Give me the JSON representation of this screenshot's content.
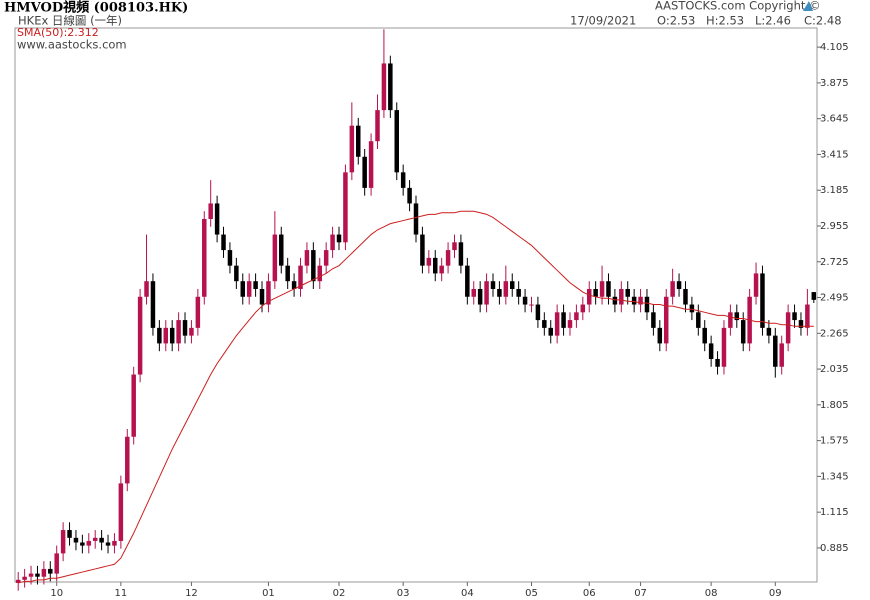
{
  "header": {
    "title": "HMVOD視頻 (008103.HK)",
    "subtitle": "HKEx 日線圖 (一年)",
    "website": "www.aastocks.com",
    "copyright": "AASTOCKS.com Copyright ©",
    "date": "17/09/2021",
    "open": "O:2.53",
    "high": "H:2.53",
    "low": "L:2.46",
    "close": "C:2.48"
  },
  "chart_data": {
    "type": "candlestick",
    "categories": [
      null,
      null,
      null,
      null,
      null,
      null,
      "10",
      null,
      null,
      null,
      null,
      null,
      null,
      null,
      null,
      null,
      "11",
      null,
      null,
      null,
      null,
      null,
      null,
      null,
      null,
      null,
      null,
      "12",
      null,
      null,
      null,
      null,
      null,
      null,
      null,
      null,
      null,
      null,
      null,
      "01",
      null,
      null,
      null,
      null,
      null,
      null,
      null,
      null,
      null,
      null,
      "02",
      null,
      null,
      null,
      null,
      null,
      null,
      null,
      null,
      null,
      "03",
      null,
      null,
      null,
      null,
      null,
      null,
      null,
      null,
      null,
      "04",
      null,
      null,
      null,
      null,
      null,
      null,
      null,
      null,
      null,
      "05",
      null,
      null,
      null,
      null,
      null,
      null,
      null,
      null,
      "06",
      null,
      null,
      null,
      null,
      null,
      null,
      null,
      "07",
      null,
      null,
      null,
      null,
      null,
      null,
      null,
      null,
      null,
      null,
      "08",
      null,
      null,
      null,
      null,
      null,
      null,
      null,
      null,
      null,
      "09",
      null,
      null,
      null,
      null,
      null,
      null
    ],
    "open": [
      0.66,
      0.68,
      0.7,
      0.72,
      0.7,
      0.75,
      0.72,
      0.85,
      1.0,
      0.95,
      0.92,
      0.9,
      0.93,
      0.95,
      0.92,
      0.9,
      0.93,
      1.3,
      1.6,
      2.0,
      2.5,
      2.6,
      2.3,
      2.2,
      2.3,
      2.2,
      2.35,
      2.25,
      2.3,
      2.5,
      3.0,
      3.1,
      2.9,
      2.8,
      2.7,
      2.6,
      2.5,
      2.6,
      2.55,
      2.45,
      2.6,
      2.9,
      2.7,
      2.6,
      2.55,
      2.7,
      2.8,
      2.6,
      2.7,
      2.8,
      2.9,
      2.85,
      3.3,
      3.6,
      3.4,
      3.2,
      3.5,
      3.7,
      4.0,
      3.7,
      3.3,
      3.2,
      3.1,
      2.9,
      2.7,
      2.75,
      2.65,
      2.7,
      2.8,
      2.85,
      2.7,
      2.5,
      2.55,
      2.45,
      2.6,
      2.55,
      2.5,
      2.6,
      2.55,
      2.5,
      2.45,
      2.45,
      2.35,
      2.3,
      2.25,
      2.4,
      2.3,
      2.35,
      2.4,
      2.45,
      2.55,
      2.5,
      2.6,
      2.5,
      2.45,
      2.55,
      2.5,
      2.45,
      2.5,
      2.4,
      2.3,
      2.2,
      2.5,
      2.6,
      2.55,
      2.45,
      2.4,
      2.3,
      2.2,
      2.1,
      2.05,
      2.3,
      2.4,
      2.35,
      2.2,
      2.5,
      2.65,
      2.3,
      2.25,
      2.05,
      2.2,
      2.4,
      2.35,
      2.3,
      2.53
    ],
    "high": [
      0.73,
      0.75,
      0.77,
      0.77,
      0.8,
      0.8,
      0.9,
      1.05,
      1.05,
      1.0,
      0.97,
      0.98,
      1.0,
      1.0,
      0.97,
      0.98,
      1.35,
      1.65,
      2.05,
      2.55,
      2.9,
      2.65,
      2.35,
      2.35,
      2.35,
      2.4,
      2.4,
      2.35,
      2.55,
      3.05,
      3.25,
      3.15,
      2.95,
      2.85,
      2.75,
      2.65,
      2.65,
      2.65,
      2.6,
      2.65,
      3.05,
      2.95,
      2.75,
      2.65,
      2.75,
      2.85,
      2.85,
      2.75,
      2.85,
      2.95,
      2.95,
      3.35,
      3.75,
      3.65,
      3.45,
      3.55,
      3.8,
      4.22,
      4.05,
      3.75,
      3.35,
      3.25,
      3.15,
      2.95,
      2.8,
      2.8,
      2.75,
      2.85,
      2.9,
      2.9,
      2.75,
      2.6,
      2.6,
      2.65,
      2.65,
      2.6,
      2.7,
      2.65,
      2.6,
      2.55,
      2.5,
      2.5,
      2.4,
      2.35,
      2.45,
      2.45,
      2.4,
      2.45,
      2.5,
      2.6,
      2.6,
      2.7,
      2.65,
      2.55,
      2.6,
      2.6,
      2.55,
      2.55,
      2.55,
      2.45,
      2.35,
      2.55,
      2.68,
      2.65,
      2.6,
      2.5,
      2.45,
      2.35,
      2.25,
      2.15,
      2.35,
      2.45,
      2.45,
      2.4,
      2.55,
      2.72,
      2.7,
      2.35,
      2.3,
      2.25,
      2.45,
      2.45,
      2.4,
      2.55,
      2.53
    ],
    "low": [
      0.61,
      0.63,
      0.65,
      0.65,
      0.65,
      0.67,
      0.67,
      0.8,
      0.9,
      0.87,
      0.85,
      0.85,
      0.88,
      0.87,
      0.85,
      0.85,
      0.88,
      1.25,
      1.55,
      1.95,
      2.45,
      2.25,
      2.15,
      2.15,
      2.15,
      2.15,
      2.2,
      2.2,
      2.25,
      2.45,
      2.95,
      2.85,
      2.75,
      2.65,
      2.55,
      2.45,
      2.45,
      2.5,
      2.4,
      2.4,
      2.55,
      2.65,
      2.55,
      2.5,
      2.5,
      2.65,
      2.55,
      2.55,
      2.65,
      2.75,
      2.8,
      2.8,
      3.25,
      3.35,
      3.15,
      3.15,
      3.45,
      3.65,
      3.65,
      3.25,
      3.15,
      3.05,
      2.85,
      2.65,
      2.65,
      2.6,
      2.6,
      2.65,
      2.75,
      2.65,
      2.45,
      2.45,
      2.4,
      2.4,
      2.5,
      2.45,
      2.45,
      2.5,
      2.45,
      2.4,
      2.4,
      2.3,
      2.25,
      2.2,
      2.2,
      2.25,
      2.25,
      2.3,
      2.35,
      2.4,
      2.45,
      2.45,
      2.45,
      2.4,
      2.4,
      2.45,
      2.4,
      2.4,
      2.35,
      2.25,
      2.15,
      2.15,
      2.45,
      2.5,
      2.4,
      2.35,
      2.25,
      2.15,
      2.05,
      2.0,
      2.0,
      2.25,
      2.3,
      2.15,
      2.15,
      2.45,
      2.25,
      2.2,
      1.98,
      2.0,
      2.15,
      2.3,
      2.25,
      2.25,
      2.46
    ],
    "close": [
      0.68,
      0.7,
      0.72,
      0.7,
      0.75,
      0.72,
      0.85,
      1.0,
      0.95,
      0.92,
      0.9,
      0.93,
      0.95,
      0.92,
      0.9,
      0.93,
      1.3,
      1.6,
      2.0,
      2.5,
      2.6,
      2.3,
      2.2,
      2.3,
      2.2,
      2.35,
      2.25,
      2.3,
      2.5,
      3.0,
      3.1,
      2.9,
      2.8,
      2.7,
      2.6,
      2.5,
      2.6,
      2.55,
      2.45,
      2.6,
      2.9,
      2.7,
      2.6,
      2.55,
      2.7,
      2.8,
      2.6,
      2.7,
      2.8,
      2.9,
      2.85,
      3.3,
      3.6,
      3.4,
      3.2,
      3.5,
      3.7,
      4.0,
      3.7,
      3.3,
      3.2,
      3.1,
      2.9,
      2.7,
      2.75,
      2.65,
      2.7,
      2.8,
      2.85,
      2.7,
      2.5,
      2.55,
      2.45,
      2.6,
      2.55,
      2.5,
      2.6,
      2.55,
      2.5,
      2.45,
      2.45,
      2.35,
      2.3,
      2.25,
      2.4,
      2.3,
      2.35,
      2.4,
      2.45,
      2.55,
      2.5,
      2.6,
      2.5,
      2.45,
      2.55,
      2.5,
      2.45,
      2.5,
      2.4,
      2.3,
      2.2,
      2.5,
      2.6,
      2.55,
      2.45,
      2.4,
      2.3,
      2.2,
      2.1,
      2.05,
      2.3,
      2.4,
      2.35,
      2.2,
      2.5,
      2.65,
      2.3,
      2.25,
      2.05,
      2.2,
      2.4,
      2.35,
      2.3,
      2.45,
      2.48
    ],
    "up_color": "#b5124e",
    "down_color": "#000000",
    "series": [
      {
        "name": "SMA(50):2.312",
        "color": "#cc1f1f",
        "values": [
          0.66,
          0.67,
          0.67,
          0.68,
          0.68,
          0.69,
          0.69,
          0.7,
          0.71,
          0.72,
          0.73,
          0.74,
          0.75,
          0.76,
          0.77,
          0.78,
          0.82,
          0.9,
          0.98,
          1.07,
          1.16,
          1.25,
          1.34,
          1.43,
          1.52,
          1.6,
          1.68,
          1.76,
          1.84,
          1.92,
          2.0,
          2.07,
          2.13,
          2.19,
          2.25,
          2.3,
          2.35,
          2.4,
          2.44,
          2.47,
          2.49,
          2.51,
          2.53,
          2.55,
          2.57,
          2.59,
          2.61,
          2.63,
          2.65,
          2.68,
          2.7,
          2.74,
          2.78,
          2.82,
          2.86,
          2.9,
          2.93,
          2.95,
          2.97,
          2.98,
          2.99,
          3.0,
          3.01,
          3.02,
          3.03,
          3.03,
          3.04,
          3.04,
          3.04,
          3.05,
          3.05,
          3.05,
          3.04,
          3.03,
          3.01,
          2.98,
          2.95,
          2.92,
          2.89,
          2.86,
          2.83,
          2.79,
          2.75,
          2.71,
          2.67,
          2.63,
          2.59,
          2.56,
          2.53,
          2.51,
          2.5,
          2.49,
          2.49,
          2.48,
          2.48,
          2.47,
          2.47,
          2.46,
          2.46,
          2.45,
          2.45,
          2.44,
          2.44,
          2.43,
          2.42,
          2.42,
          2.41,
          2.4,
          2.39,
          2.38,
          2.38,
          2.37,
          2.36,
          2.36,
          2.35,
          2.34,
          2.34,
          2.33,
          2.33,
          2.32,
          2.32,
          2.31,
          2.31,
          2.31,
          2.31
        ]
      }
    ],
    "ylim": [
      0.666,
      4.228
    ],
    "yticks": [
      0.885,
      1.115,
      1.345,
      1.575,
      1.805,
      2.035,
      2.265,
      2.495,
      2.725,
      2.955,
      3.185,
      3.415,
      3.645,
      3.875,
      4.105
    ],
    "grid": false
  }
}
